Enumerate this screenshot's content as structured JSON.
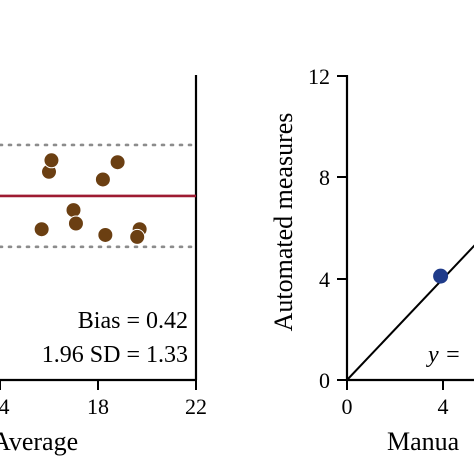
{
  "chart_data": [
    {
      "type": "scatter",
      "panel": "bland-altman",
      "xlabel": "Average",
      "ylabel": "",
      "xlim": [
        14,
        22
      ],
      "x_ticks": [
        "4",
        "18",
        "22"
      ],
      "colors": {
        "points": "#6b3f12",
        "bias_line": "#9e1b32",
        "limit_lines": "#8c8c8c"
      },
      "bias_line_y": 0.42,
      "limit_lines_y": [
        1.75,
        -0.91
      ],
      "points": [
        {
          "x": 16.0,
          "y": 1.05
        },
        {
          "x": 16.1,
          "y": 1.35
        },
        {
          "x": 17.0,
          "y": 0.05
        },
        {
          "x": 17.1,
          "y": -0.3
        },
        {
          "x": 15.7,
          "y": -0.45
        },
        {
          "x": 18.2,
          "y": 0.85
        },
        {
          "x": 18.8,
          "y": 1.3
        },
        {
          "x": 18.3,
          "y": -0.6
        },
        {
          "x": 19.7,
          "y": -0.45
        },
        {
          "x": 19.6,
          "y": -0.65
        }
      ],
      "annotations": [
        "Bias = 0.42",
        "1.96 SD = 1.33"
      ]
    },
    {
      "type": "scatter",
      "panel": "correlation",
      "xlabel": "Manua",
      "ylabel": "Automated measures",
      "xlim": [
        0,
        12
      ],
      "ylim": [
        0,
        12
      ],
      "y_ticks": [
        "0",
        "4",
        "8",
        "12"
      ],
      "x_ticks": [
        "0",
        "4"
      ],
      "colors": {
        "points": "#1f3b8a",
        "line": "#000000"
      },
      "points": [
        {
          "x": 3.9,
          "y": 4.1
        }
      ],
      "line": {
        "slope": 1.0,
        "intercept": 0.0
      },
      "annotations": [
        "y ="
      ]
    }
  ]
}
